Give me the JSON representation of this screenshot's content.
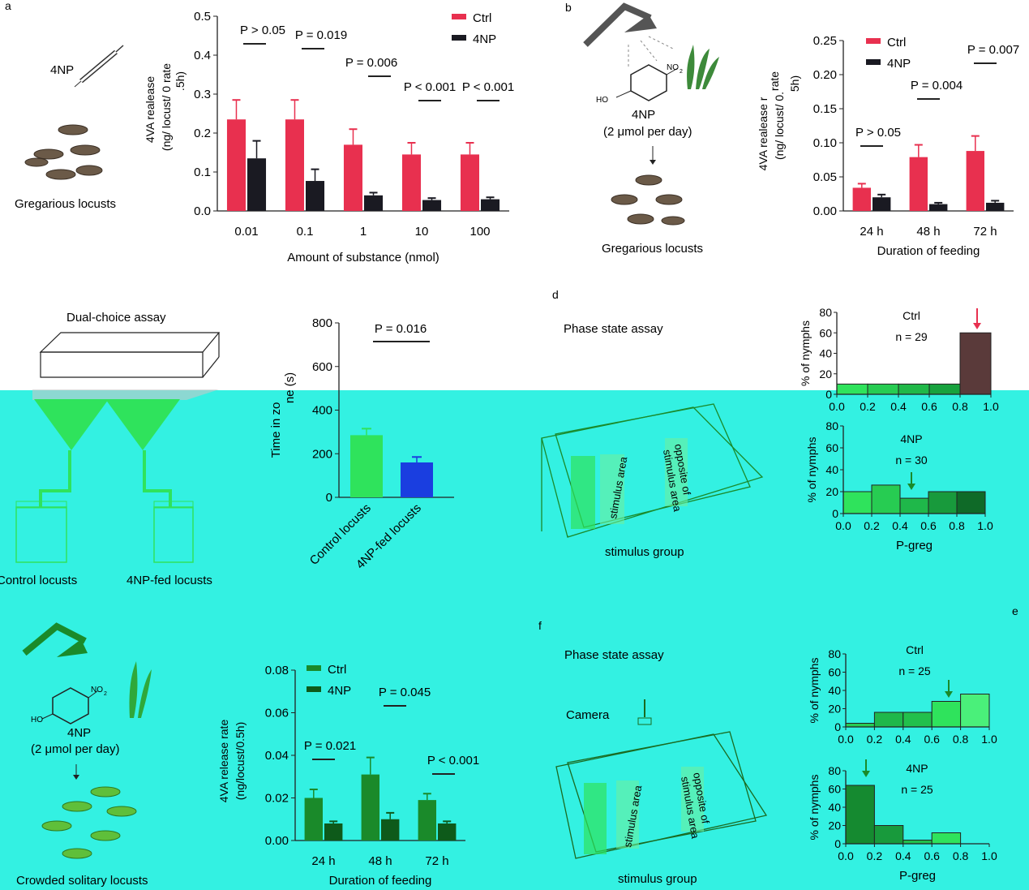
{
  "panel_letters": {
    "a": "a",
    "b": "b",
    "d": "d",
    "e": "e",
    "f": "f"
  },
  "colors": {
    "ctrl": "#e8304f",
    "np": "#1a1a22",
    "green": "#1a8a2a",
    "lightgreen": "#2fe35c",
    "blue": "#1a3ee0",
    "band": "#33f1e2"
  },
  "panel_a": {
    "syringe_label": "4NP",
    "locust_caption": "Gregarious locusts"
  },
  "panel_b": {
    "compound_label": "4NP",
    "dose": "(2 μmol per day)",
    "locust_caption": "Gregarious locusts",
    "structure_ho": "HO",
    "structure_no2": "NO",
    "structure_sub": "2"
  },
  "panel_c": {
    "title": "Dual-choice assay",
    "control_label": "Control locusts",
    "np_label": "4NP-fed locusts"
  },
  "panel_d": {
    "title": "Phase state assay",
    "stimulus_area": "stimulus area",
    "opposite": "opposite of",
    "opposite2": "stimulus area",
    "stimulus_group": "stimulus group"
  },
  "panel_e": {
    "compound_label": "4NP",
    "dose": "(2 μmol per day)",
    "locust_caption": "Crowded solitary locusts",
    "structure_ho": "HO",
    "structure_no2": "NO",
    "structure_sub": "2"
  },
  "panel_f": {
    "title": "Phase state assay",
    "camera": "Camera",
    "stimulus_area": "stimulus area",
    "opposite": "opposite of",
    "opposite2": "stimulus area",
    "stimulus_group": "stimulus group"
  },
  "chart_data": [
    {
      "id": "a",
      "type": "bar",
      "categories": [
        "0.01",
        "0.1",
        "1",
        "10",
        "100"
      ],
      "series": [
        {
          "name": "Ctrl",
          "values": [
            0.235,
            0.235,
            0.17,
            0.145,
            0.145
          ],
          "errors": [
            0.05,
            0.05,
            0.04,
            0.03,
            0.03
          ]
        },
        {
          "name": "4NP",
          "values": [
            0.135,
            0.077,
            0.04,
            0.028,
            0.03
          ],
          "errors": [
            0.045,
            0.03,
            0.007,
            0.005,
            0.005
          ]
        }
      ],
      "xlabel": "Amount of substance (nmol)",
      "ylabel_lines": [
        "4VA realease",
        "(ng/ locust/ 0 rate",
        ".5h)"
      ],
      "yticks": [
        "0.0",
        "0.1",
        "0.2",
        "0.3",
        "0.4",
        "0.5"
      ],
      "ylim": [
        0,
        0.5
      ],
      "legend": [
        "Ctrl",
        "4NP"
      ],
      "pvalues": [
        "P > 0.05",
        "P = 0.019",
        "P = 0.006",
        "P < 0.001",
        "P < 0.001"
      ]
    },
    {
      "id": "b",
      "type": "bar",
      "categories": [
        "24 h",
        "48 h",
        "72 h"
      ],
      "series": [
        {
          "name": "Ctrl",
          "values": [
            0.034,
            0.079,
            0.088
          ],
          "errors": [
            0.006,
            0.018,
            0.022
          ]
        },
        {
          "name": "4NP",
          "values": [
            0.02,
            0.01,
            0.012
          ],
          "errors": [
            0.004,
            0.002,
            0.003
          ]
        }
      ],
      "xlabel": "Duration of feeding",
      "ylabel_lines": [
        "4VA realease r",
        "(ng/ locust/ 0.",
        "5h)",
        "rate"
      ],
      "yticks": [
        "0.00",
        "0.05",
        "0.10",
        "0.15",
        "0.20",
        "0.25"
      ],
      "ylim": [
        0,
        0.25
      ],
      "legend": [
        "Ctrl",
        "4NP"
      ],
      "pvalues": [
        "P > 0.05",
        "P = 0.004",
        "P = 0.007"
      ]
    },
    {
      "id": "c",
      "type": "bar",
      "categories": [
        "Control locusts",
        "4NP-fed locusts"
      ],
      "values": [
        285,
        160
      ],
      "errors": [
        30,
        25
      ],
      "ylabel_lines": [
        "Time in zo",
        "ne (s)"
      ],
      "yticks": [
        "0",
        "200",
        "400",
        "600",
        "800"
      ],
      "ylim": [
        0,
        800
      ],
      "pvalue": "P = 0.016"
    },
    {
      "id": "d-ctrl",
      "type": "bar",
      "categories": [
        "0.0-0.2",
        "0.2-0.4",
        "0.4-0.6",
        "0.6-0.8",
        "0.8-1.0"
      ],
      "values": [
        10,
        10,
        10,
        10,
        60
      ],
      "xlabel": "",
      "ylabel": "% of nymphs",
      "xticks": [
        "0.0",
        "0.2",
        "0.4",
        "0.6",
        "0.8",
        "1.0"
      ],
      "yticks": [
        "0",
        "20",
        "40",
        "60",
        "80"
      ],
      "ylim": [
        0,
        80
      ],
      "group": "Ctrl",
      "n": "n = 29"
    },
    {
      "id": "d-4np",
      "type": "bar",
      "categories": [
        "0.0-0.2",
        "0.2-0.4",
        "0.4-0.6",
        "0.6-0.8",
        "0.8-1.0"
      ],
      "values": [
        20,
        26,
        14,
        20,
        20
      ],
      "xlabel": "P-greg",
      "ylabel": "% of nymphs",
      "xticks": [
        "0.0",
        "0.2",
        "0.4",
        "0.6",
        "0.8",
        "1.0"
      ],
      "yticks": [
        "0",
        "20",
        "40",
        "60",
        "80"
      ],
      "ylim": [
        0,
        80
      ],
      "group": "4NP",
      "n": "n = 30"
    },
    {
      "id": "e",
      "type": "bar",
      "categories": [
        "24 h",
        "48 h",
        "72 h"
      ],
      "series": [
        {
          "name": "Ctrl",
          "values": [
            0.02,
            0.031,
            0.019
          ],
          "errors": [
            0.004,
            0.008,
            0.003
          ]
        },
        {
          "name": "4NP",
          "values": [
            0.008,
            0.01,
            0.008
          ],
          "errors": [
            0.001,
            0.003,
            0.001
          ]
        }
      ],
      "xlabel": "Duration of feeding",
      "ylabel_lines": [
        "4VA release rate",
        "(ng/locust/0.5h)"
      ],
      "yticks": [
        "0.00",
        "0.02",
        "0.04",
        "0.06",
        "0.08"
      ],
      "ylim": [
        0,
        0.08
      ],
      "legend": [
        "Ctrl",
        "4NP"
      ],
      "pvalues": [
        "P = 0.021",
        "P = 0.045",
        "P < 0.001"
      ]
    },
    {
      "id": "f-ctrl",
      "type": "bar",
      "categories": [
        "0.0-0.2",
        "0.2-0.4",
        "0.4-0.6",
        "0.6-0.8",
        "0.8-1.0"
      ],
      "values": [
        4,
        16,
        16,
        28,
        36
      ],
      "ylabel": "% of nymphs",
      "xticks": [
        "0.0",
        "0.2",
        "0.4",
        "0.6",
        "0.8",
        "1.0"
      ],
      "yticks": [
        "0",
        "20",
        "40",
        "60",
        "80"
      ],
      "ylim": [
        0,
        80
      ],
      "group": "Ctrl",
      "n": "n = 25"
    },
    {
      "id": "f-4np",
      "type": "bar",
      "categories": [
        "0.0-0.2",
        "0.2-0.4",
        "0.4-0.6",
        "0.6-0.8",
        "0.8-1.0"
      ],
      "values": [
        64,
        20,
        4,
        12,
        0
      ],
      "xlabel": "P-greg",
      "ylabel": "% of nymphs",
      "xticks": [
        "0.0",
        "0.2",
        "0.4",
        "0.6",
        "0.8",
        "1.0"
      ],
      "yticks": [
        "0",
        "20",
        "40",
        "60",
        "80"
      ],
      "ylim": [
        0,
        80
      ],
      "group": "4NP",
      "n": "n = 25"
    }
  ]
}
